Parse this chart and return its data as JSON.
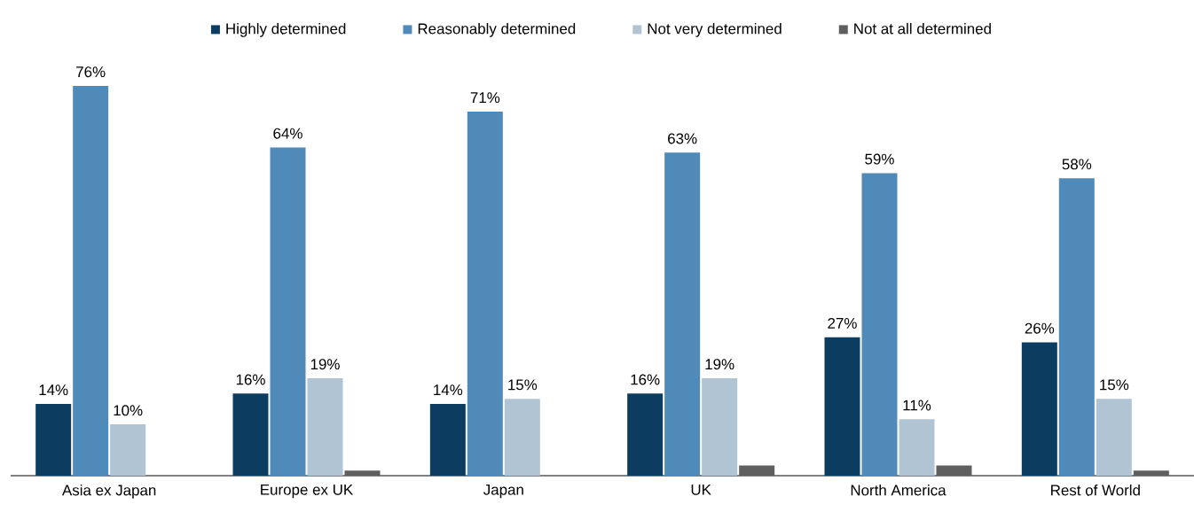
{
  "chart_data": {
    "type": "bar",
    "legend": "top",
    "tick_labels": "x",
    "categories": [
      "Asia ex Japan",
      "Europe ex UK",
      "Japan",
      "UK",
      "North America",
      "Rest of World"
    ],
    "series": [
      {
        "name": "Highly determined",
        "color": "#0d3c61",
        "values": [
          14,
          16,
          14,
          16,
          27,
          26
        ],
        "value_labels": [
          "14%",
          "16%",
          "14%",
          "16%",
          "27%",
          "26%"
        ]
      },
      {
        "name": "Reasonably determined",
        "color": "#4f8ab8",
        "values": [
          76,
          64,
          71,
          63,
          59,
          58
        ],
        "value_labels": [
          "76%",
          "64%",
          "71%",
          "63%",
          "59%",
          "58%"
        ]
      },
      {
        "name": "Not very determined",
        "color": "#b0c4d4",
        "values": [
          10,
          19,
          15,
          19,
          11,
          15
        ],
        "value_labels": [
          "10%",
          "19%",
          "15%",
          "19%",
          "11%",
          "15%"
        ]
      },
      {
        "name": "Not at all determined",
        "color": "#5f5f5f",
        "values": [
          0,
          1,
          0,
          2,
          2,
          1
        ],
        "value_labels": [
          null,
          null,
          null,
          null,
          null,
          null
        ]
      }
    ]
  }
}
